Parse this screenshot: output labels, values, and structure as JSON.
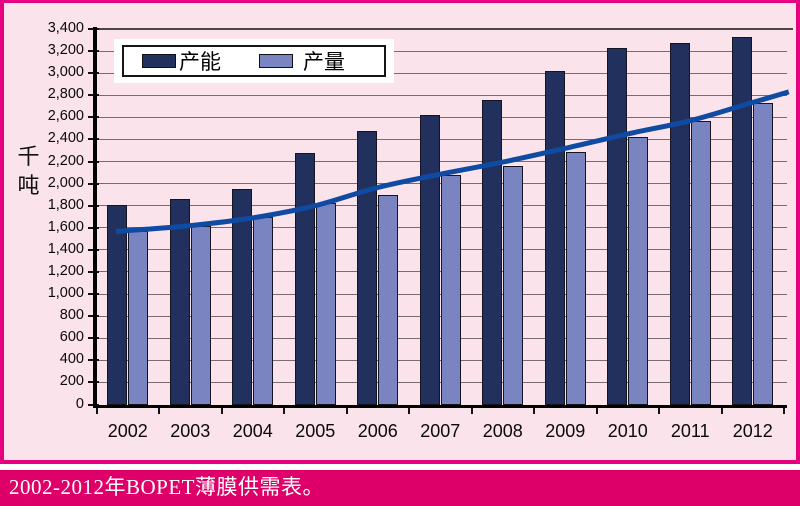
{
  "panel": {
    "background": "#fae3eb",
    "border_color": "#e6007e"
  },
  "caption": {
    "text": "2002-2012年BOPET薄膜供需表。",
    "bar_color": "#de0068",
    "text_color": "#ffffff"
  },
  "chart_data": {
    "type": "bar",
    "title": "",
    "xlabel": "",
    "ylabel": "千吨",
    "grid": true,
    "legend_position": "top-left",
    "background_color": "#fae3eb",
    "gridline_color": "#7a6a72",
    "categories": [
      "2002",
      "2003",
      "2004",
      "2005",
      "2006",
      "2007",
      "2008",
      "2009",
      "2010",
      "2011",
      "2012"
    ],
    "series": [
      {
        "key": "capacity",
        "name": "产能",
        "color": "#22305e",
        "values": [
          1810,
          1860,
          1950,
          2280,
          2480,
          2620,
          2760,
          3020,
          3230,
          3270,
          3330
        ]
      },
      {
        "key": "production",
        "name": "产量",
        "color": "#7a84c0",
        "values": [
          1570,
          1620,
          1700,
          1820,
          1900,
          2080,
          2160,
          2290,
          2420,
          2570,
          2730
        ]
      }
    ],
    "trend_line": {
      "color": "#0f4aa3",
      "values": [
        1575,
        1620,
        1690,
        1800,
        1965,
        2085,
        2195,
        2320,
        2450,
        2570,
        2735
      ]
    },
    "y_axis": {
      "min": 0,
      "max": 3400,
      "step": 200,
      "tick_labels": [
        "0",
        "200",
        "400",
        "600",
        "800",
        "1,000",
        "1,200",
        "1,400",
        "1,600",
        "1,800",
        "2,000",
        "2,200",
        "2,400",
        "2,600",
        "2,800",
        "3,000",
        "3,200",
        "3,400"
      ]
    }
  }
}
